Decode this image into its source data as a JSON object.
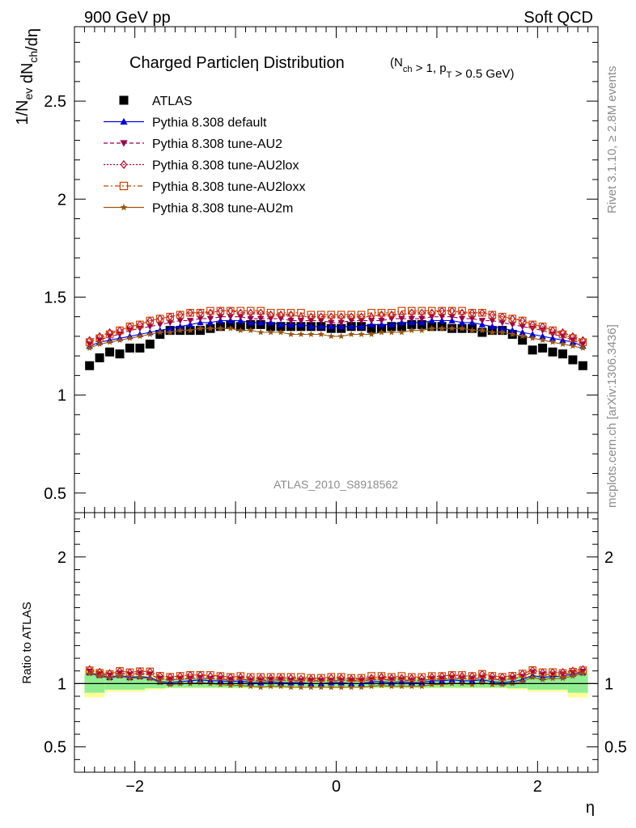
{
  "header": {
    "left": "900 GeV pp",
    "right": "Soft QCD"
  },
  "side": {
    "rivet": "Rivet 3.1.10, ≥ 2.8M events",
    "mcplots": "mcplots.cern.ch [arXiv:1306.3436]"
  },
  "chart_data": [
    {
      "type": "scatter",
      "title": "Charged Particle",
      "title_symbol": "η",
      "title_suffix": " Distribution",
      "subtitle": "(N_ch > 1, p_T > 0.5 GeV)",
      "ylabel": "1/N_ev dN_ch/dη",
      "ylim": [
        0.4,
        2.88
      ],
      "yticks": [
        "0.5",
        "1",
        "1.5",
        "2",
        "2.5"
      ],
      "watermark": "ATLAS_2010_S8918562",
      "legend_position": "top-left",
      "x": [
        -2.45,
        -2.35,
        -2.25,
        -2.15,
        -2.05,
        -1.95,
        -1.85,
        -1.75,
        -1.65,
        -1.55,
        -1.45,
        -1.35,
        -1.25,
        -1.15,
        -1.05,
        -0.95,
        -0.85,
        -0.75,
        -0.65,
        -0.55,
        -0.45,
        -0.35,
        -0.25,
        -0.15,
        -0.05,
        0.05,
        0.15,
        0.25,
        0.35,
        0.45,
        0.55,
        0.65,
        0.75,
        0.85,
        0.95,
        1.05,
        1.15,
        1.25,
        1.35,
        1.45,
        1.55,
        1.65,
        1.75,
        1.85,
        1.95,
        2.05,
        2.15,
        2.25,
        2.35,
        2.45
      ],
      "series": [
        {
          "name": "ATLAS",
          "color": "#000000",
          "marker": "square-filled",
          "line": "none",
          "values": [
            1.15,
            1.19,
            1.22,
            1.21,
            1.24,
            1.24,
            1.26,
            1.31,
            1.33,
            1.33,
            1.33,
            1.33,
            1.34,
            1.35,
            1.36,
            1.35,
            1.36,
            1.36,
            1.35,
            1.35,
            1.35,
            1.35,
            1.35,
            1.35,
            1.34,
            1.34,
            1.35,
            1.35,
            1.34,
            1.34,
            1.35,
            1.35,
            1.36,
            1.36,
            1.35,
            1.35,
            1.34,
            1.34,
            1.34,
            1.32,
            1.33,
            1.33,
            1.31,
            1.28,
            1.23,
            1.24,
            1.22,
            1.21,
            1.18,
            1.15
          ]
        },
        {
          "name": "Pythia 8.308 default",
          "color": "#0000dd",
          "marker": "triangle-up-filled",
          "line": "solid",
          "values": [
            1.25,
            1.27,
            1.28,
            1.29,
            1.3,
            1.31,
            1.32,
            1.33,
            1.34,
            1.35,
            1.36,
            1.37,
            1.37,
            1.38,
            1.38,
            1.38,
            1.37,
            1.37,
            1.37,
            1.36,
            1.36,
            1.36,
            1.35,
            1.35,
            1.35,
            1.35,
            1.35,
            1.35,
            1.36,
            1.36,
            1.36,
            1.37,
            1.37,
            1.37,
            1.38,
            1.38,
            1.38,
            1.37,
            1.37,
            1.36,
            1.35,
            1.34,
            1.33,
            1.32,
            1.31,
            1.3,
            1.29,
            1.28,
            1.27,
            1.25
          ]
        },
        {
          "name": "Pythia 8.308 tune-AU2",
          "color": "#99004d",
          "marker": "triangle-down-filled",
          "line": "dashed",
          "values": [
            1.26,
            1.28,
            1.3,
            1.31,
            1.33,
            1.34,
            1.35,
            1.36,
            1.37,
            1.38,
            1.38,
            1.39,
            1.39,
            1.4,
            1.4,
            1.4,
            1.39,
            1.39,
            1.39,
            1.39,
            1.38,
            1.38,
            1.38,
            1.38,
            1.37,
            1.37,
            1.38,
            1.38,
            1.38,
            1.38,
            1.39,
            1.39,
            1.39,
            1.39,
            1.4,
            1.4,
            1.4,
            1.39,
            1.39,
            1.38,
            1.38,
            1.37,
            1.36,
            1.35,
            1.34,
            1.33,
            1.31,
            1.3,
            1.28,
            1.26
          ]
        },
        {
          "name": "Pythia 8.308 tune-AU2lox",
          "color": "#bb0033",
          "marker": "diamond-open",
          "line": "dotted",
          "values": [
            1.28,
            1.3,
            1.32,
            1.33,
            1.35,
            1.36,
            1.38,
            1.39,
            1.4,
            1.41,
            1.42,
            1.42,
            1.42,
            1.43,
            1.43,
            1.42,
            1.42,
            1.42,
            1.41,
            1.41,
            1.41,
            1.4,
            1.4,
            1.4,
            1.4,
            1.4,
            1.4,
            1.4,
            1.4,
            1.41,
            1.41,
            1.41,
            1.42,
            1.42,
            1.42,
            1.43,
            1.43,
            1.42,
            1.42,
            1.42,
            1.41,
            1.4,
            1.39,
            1.38,
            1.36,
            1.35,
            1.33,
            1.32,
            1.3,
            1.28
          ]
        },
        {
          "name": "Pythia 8.308 tune-AU2loxx",
          "color": "#cc4400",
          "marker": "square-open",
          "line": "dashdot",
          "values": [
            1.27,
            1.29,
            1.31,
            1.33,
            1.35,
            1.36,
            1.38,
            1.39,
            1.4,
            1.41,
            1.42,
            1.42,
            1.43,
            1.43,
            1.43,
            1.43,
            1.43,
            1.43,
            1.42,
            1.42,
            1.42,
            1.42,
            1.41,
            1.41,
            1.41,
            1.41,
            1.41,
            1.41,
            1.42,
            1.42,
            1.42,
            1.43,
            1.43,
            1.43,
            1.43,
            1.43,
            1.43,
            1.43,
            1.42,
            1.42,
            1.41,
            1.4,
            1.39,
            1.38,
            1.36,
            1.35,
            1.33,
            1.31,
            1.29,
            1.27
          ]
        },
        {
          "name": "Pythia 8.308 tune-AU2m",
          "color": "#995511",
          "marker": "star-filled",
          "line": "solid",
          "values": [
            1.24,
            1.26,
            1.27,
            1.28,
            1.29,
            1.3,
            1.31,
            1.32,
            1.32,
            1.33,
            1.33,
            1.34,
            1.34,
            1.34,
            1.34,
            1.33,
            1.33,
            1.32,
            1.32,
            1.32,
            1.31,
            1.31,
            1.31,
            1.31,
            1.3,
            1.3,
            1.31,
            1.31,
            1.31,
            1.32,
            1.32,
            1.32,
            1.33,
            1.33,
            1.34,
            1.34,
            1.34,
            1.34,
            1.33,
            1.33,
            1.32,
            1.32,
            1.31,
            1.3,
            1.29,
            1.28,
            1.27,
            1.26,
            1.25,
            1.24
          ]
        }
      ]
    },
    {
      "type": "scatter",
      "ylabel": "Ratio to ATLAS",
      "xlabel": "η",
      "xlim": [
        -2.6,
        2.6
      ],
      "xticks": [
        "−2",
        "0",
        "2"
      ],
      "ylim": [
        0.3,
        2.35
      ],
      "yticks": [
        "0.5",
        "1",
        "2"
      ],
      "bands": {
        "edges": [
          -2.5,
          -2.3,
          -1.9,
          -1.7,
          1.7,
          1.9,
          2.3,
          2.5
        ],
        "inner": [
          [
            0.928,
            1.078
          ],
          [
            0.952,
            1.062
          ],
          [
            0.963,
            1.048
          ],
          [
            0.968,
            1.038
          ],
          [
            0.963,
            1.048
          ],
          [
            0.952,
            1.062
          ],
          [
            0.928,
            1.078
          ]
        ],
        "outer": [
          [
            0.89,
            1.11
          ],
          [
            0.935,
            1.07
          ],
          [
            0.952,
            1.058
          ],
          [
            0.962,
            1.043
          ],
          [
            0.952,
            1.058
          ],
          [
            0.935,
            1.07
          ],
          [
            0.89,
            1.11
          ]
        ],
        "inner_color": "#90ee90",
        "outer_color": "#ffff99"
      }
    }
  ]
}
